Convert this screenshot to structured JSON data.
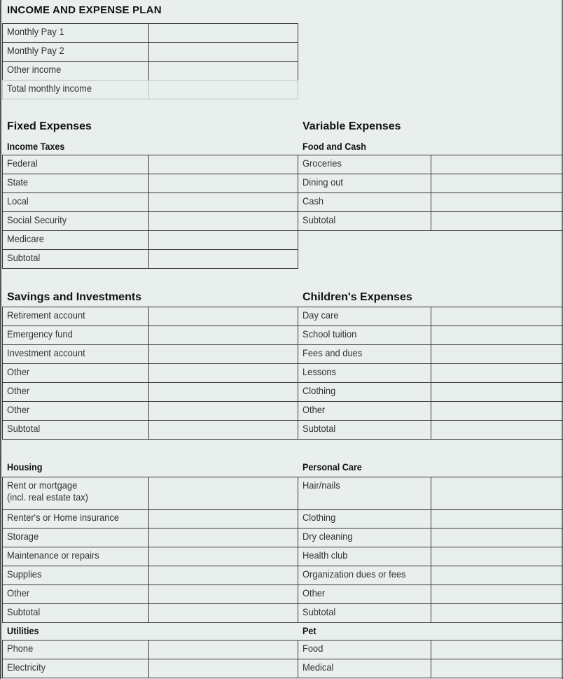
{
  "title": "INCOME AND EXPENSE PLAN",
  "income": {
    "rows": [
      "Monthly Pay 1",
      "Monthly Pay 2",
      "Other income",
      "Total monthly income"
    ]
  },
  "fixed_expenses": {
    "heading": "Fixed Expenses",
    "income_taxes": {
      "label": "Income Taxes",
      "rows": [
        "Federal",
        "State",
        "Local",
        "Social Security",
        "Medicare",
        "Subtotal"
      ]
    },
    "savings": {
      "label": "Savings and Investments",
      "rows": [
        "Retirement account",
        "Emergency fund",
        "Investment account",
        "Other",
        "Other",
        "Other",
        "Subtotal"
      ]
    },
    "housing": {
      "label": "Housing",
      "rows": [
        "Rent or mortgage\n(incl. real estate tax)",
        "Renter's or Home insurance",
        "Storage",
        "Maintenance or repairs",
        "Supplies",
        "Other",
        "Subtotal"
      ]
    },
    "utilities": {
      "label": "Utilities",
      "rows": [
        "Phone",
        "Electricity"
      ]
    }
  },
  "variable_expenses": {
    "heading": "Variable Expenses",
    "food_cash": {
      "label": "Food and Cash",
      "rows": [
        "Groceries",
        "Dining out",
        "Cash",
        "Subtotal"
      ]
    },
    "children": {
      "label": "Children's Expenses",
      "rows": [
        "Day care",
        "School tuition",
        "Fees and dues",
        "Lessons",
        "Clothing",
        "Other",
        "Subtotal"
      ]
    },
    "personal_care": {
      "label": "Personal Care",
      "rows": [
        "Hair/nails",
        "Clothing",
        "Dry cleaning",
        "Health club",
        "Organization dues or fees",
        "Other",
        "Subtotal"
      ]
    },
    "pet": {
      "label": "Pet",
      "rows": [
        "Food",
        "Medical"
      ]
    }
  }
}
